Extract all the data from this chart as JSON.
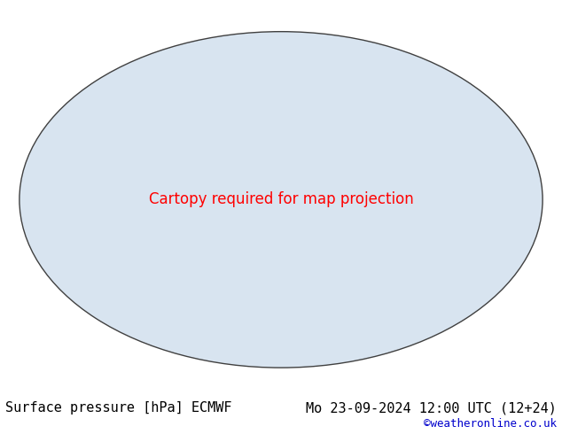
{
  "title_left": "Surface pressure [hPa] ECMWF",
  "title_right": "Mo 23-09-2024 12:00 UTC (12+24)",
  "copyright": "©weatheronline.co.uk",
  "background_color": "#ffffff",
  "map_background": "#e8e8e8",
  "ocean_color": "#d0d8e8",
  "land_color_low": "#c8e0c0",
  "land_color_high": "#a0c890",
  "contour_1013_color": "#000000",
  "contour_above_color": "#cc0000",
  "contour_below_color": "#0000cc",
  "label_1013_color": "#000000",
  "label_above_color": "#cc0000",
  "label_below_color": "#0000cc",
  "bottom_text_color": "#000000",
  "copyright_color": "#0000cc",
  "font_size_title": 11,
  "font_size_copyright": 9,
  "fig_width": 6.34,
  "fig_height": 4.9
}
